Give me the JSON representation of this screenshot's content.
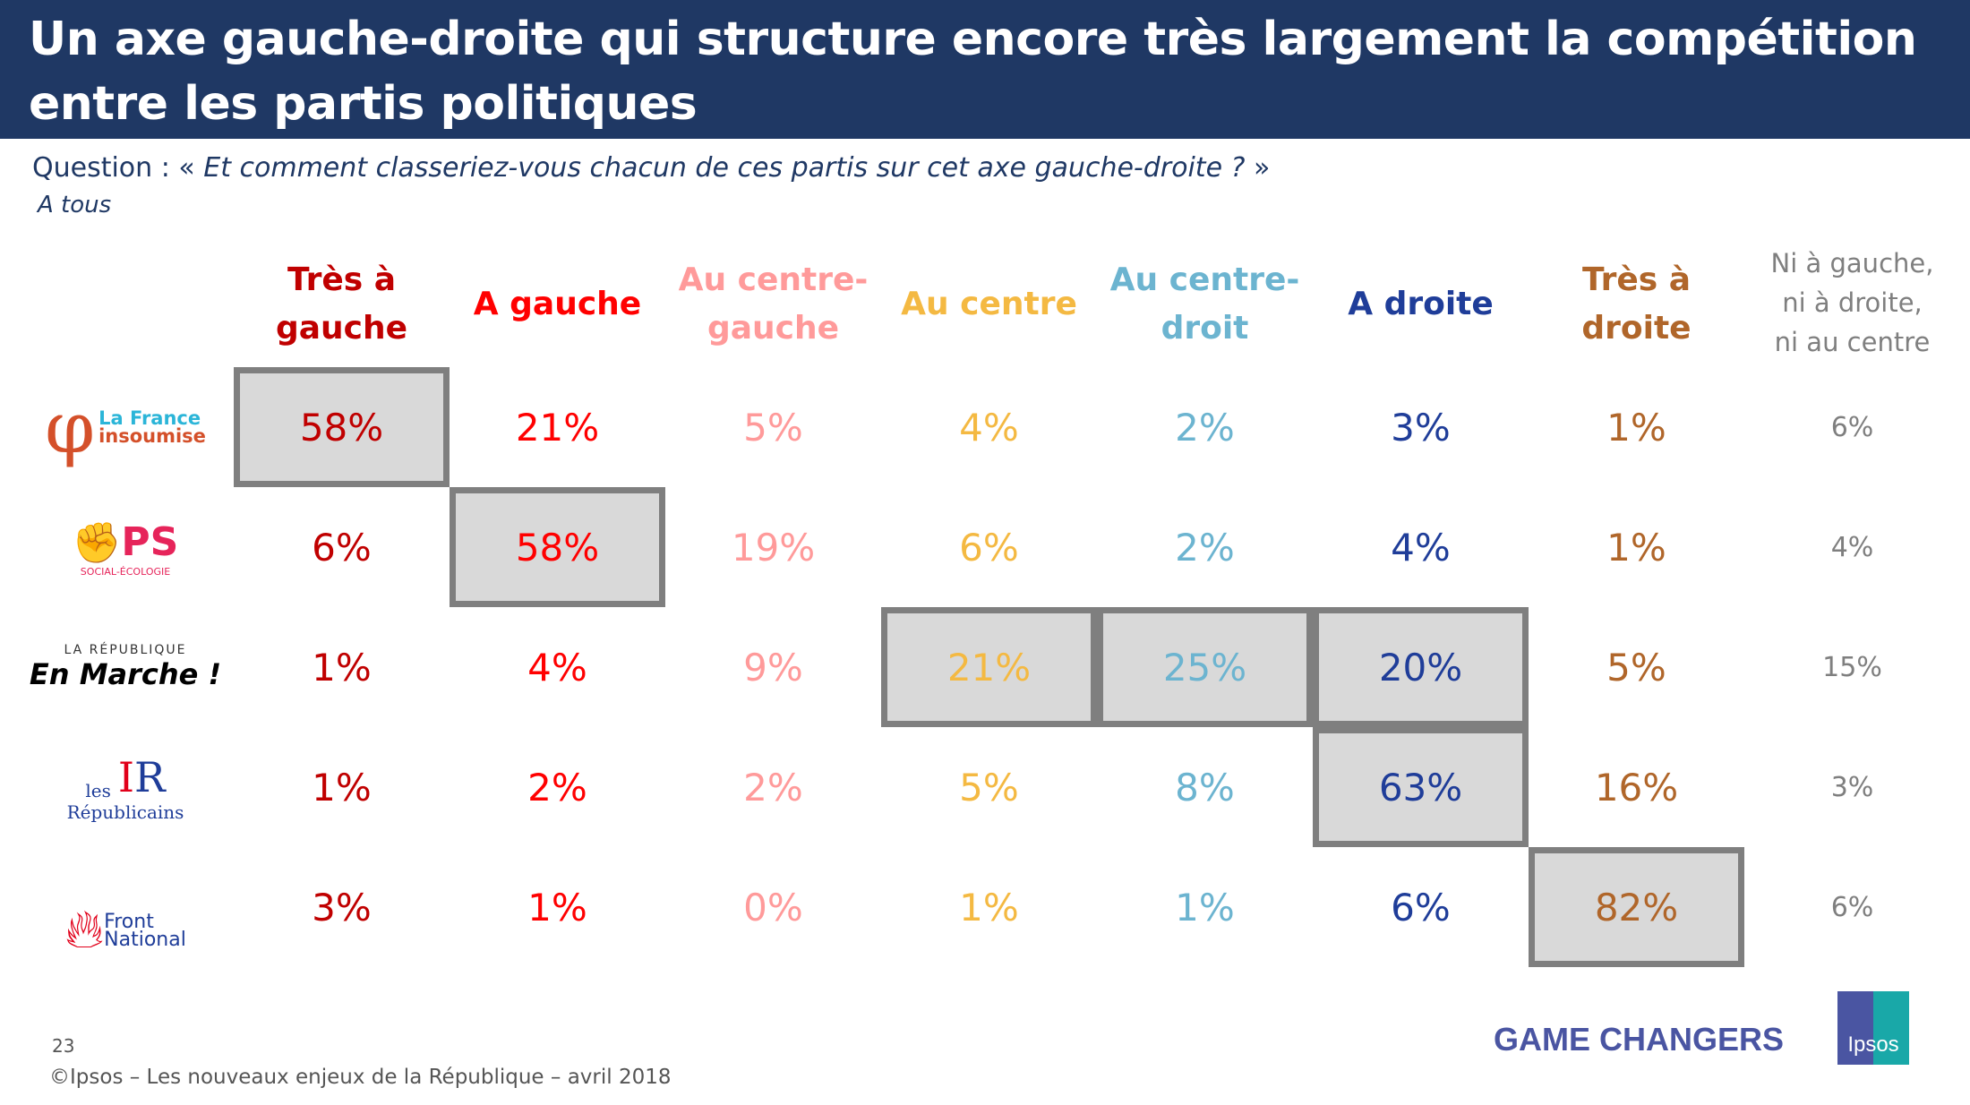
{
  "title": "Un axe gauche-droite qui structure encore très largement la compétition entre les partis politiques",
  "question_label": "Question : « ",
  "question_text": "Et comment classeriez-vous chacun de ces partis sur cet axe gauche-droite ?",
  "question_end": " »",
  "base": "A tous",
  "columns": [
    {
      "label": "Très à\ngauche",
      "color": "#c00000"
    },
    {
      "label": "A gauche",
      "color": "#ff0000"
    },
    {
      "label": "Au centre-\ngauche",
      "color": "#ff9a9a"
    },
    {
      "label": "Au centre",
      "color": "#f4b942"
    },
    {
      "label": "Au centre-\ndroit",
      "color": "#6cb4d0"
    },
    {
      "label": "A droite",
      "color": "#1f3d99"
    },
    {
      "label": "Très à\ndroite",
      "color": "#b0662a"
    },
    {
      "label": "Ni à gauche,\nni à droite,\nni au centre",
      "color": "#7f7f7f"
    }
  ],
  "rows": [
    {
      "party": "La France insoumise",
      "logo_line1": "La France",
      "logo_line2": "insoumise",
      "values": [
        "58%",
        "21%",
        "5%",
        "4%",
        "2%",
        "3%",
        "1%",
        "6%"
      ],
      "highlight": [
        0
      ]
    },
    {
      "party": "PS",
      "logo_line1": "PS",
      "logo_line2": "SOCIAL-ÉCOLOGIE",
      "values": [
        "6%",
        "58%",
        "19%",
        "6%",
        "2%",
        "4%",
        "1%",
        "4%"
      ],
      "highlight": [
        1
      ]
    },
    {
      "party": "En Marche",
      "logo_line1": "LA RÉPUBLIQUE",
      "logo_line2": "En Marche !",
      "values": [
        "1%",
        "4%",
        "9%",
        "21%",
        "25%",
        "20%",
        "5%",
        "15%"
      ],
      "highlight": [
        3,
        4,
        5
      ]
    },
    {
      "party": "Les Républicains",
      "logo_line1": "les",
      "logo_line2": "Républicains",
      "values": [
        "1%",
        "2%",
        "2%",
        "5%",
        "8%",
        "63%",
        "16%",
        "3%"
      ],
      "highlight": [
        5
      ]
    },
    {
      "party": "Front National",
      "logo_line1": "Front",
      "logo_line2": "National",
      "values": [
        "3%",
        "1%",
        "0%",
        "1%",
        "1%",
        "6%",
        "82%",
        "6%"
      ],
      "highlight": [
        6
      ]
    }
  ],
  "footer": {
    "page": "23",
    "copyright": "©Ipsos – Les nouveaux enjeux de la République – avril 2018",
    "tagline": "GAME CHANGERS",
    "brand": "Ipsos"
  }
}
